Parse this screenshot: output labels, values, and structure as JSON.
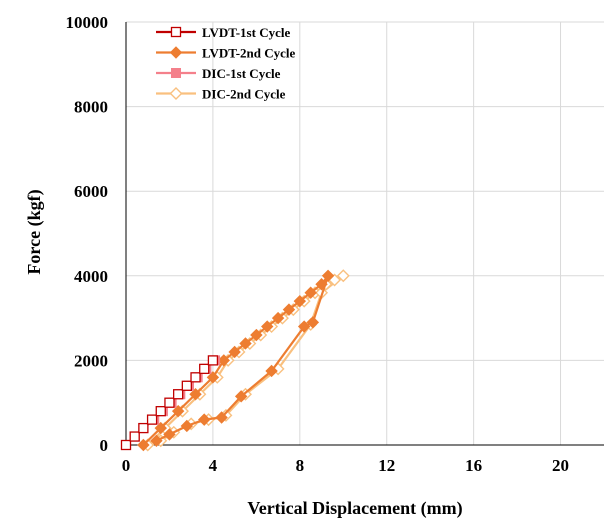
{
  "chart_data": {
    "type": "scatter",
    "title": "",
    "xlabel": "Vertical Displacement (mm)",
    "ylabel": "Force (kgf)",
    "xlim": [
      0,
      22
    ],
    "ylim": [
      0,
      10000
    ],
    "xticks": [
      0,
      4,
      8,
      12,
      16,
      20
    ],
    "yticks": [
      0,
      2000,
      4000,
      6000,
      8000,
      10000
    ],
    "grid": true,
    "legend_position": "top-left",
    "series": [
      {
        "name": "LVDT-1st Cycle",
        "color": "#c00000",
        "marker": "hollow-square",
        "x": [
          0,
          0.4,
          0.8,
          1.2,
          1.6,
          2.0,
          2.4,
          2.8,
          3.2,
          3.6,
          4.0
        ],
        "y": [
          0,
          200,
          400,
          600,
          800,
          1000,
          1200,
          1400,
          1600,
          1800,
          2000
        ]
      },
      {
        "name": "LVDT-2nd Cycle",
        "color": "#ed7d31",
        "marker": "diamond",
        "x": [
          0.8,
          1.6,
          2.4,
          3.2,
          4.0,
          4.5,
          5.0,
          5.5,
          6.0,
          6.5,
          7.0,
          7.5,
          8.0,
          8.5,
          9.0,
          9.3,
          8.6,
          8.2,
          6.7,
          5.3,
          4.4,
          3.6,
          2.8,
          2.0,
          1.4
        ],
        "y": [
          0,
          400,
          800,
          1200,
          1600,
          2000,
          2200,
          2400,
          2600,
          2800,
          3000,
          3200,
          3400,
          3600,
          3800,
          4000,
          2900,
          2800,
          1750,
          1150,
          650,
          600,
          450,
          250,
          100
        ]
      },
      {
        "name": "DIC-1st Cycle",
        "color": "#f4808b",
        "marker": "filled-square",
        "x": [
          0,
          0.4,
          0.8,
          1.3,
          1.7,
          2.1,
          2.5,
          2.9,
          3.3,
          3.7,
          4.1
        ],
        "y": [
          0,
          200,
          400,
          600,
          800,
          1000,
          1200,
          1400,
          1600,
          1800,
          2000
        ]
      },
      {
        "name": "DIC-2nd Cycle",
        "color": "#f9c07f",
        "marker": "hollow-diamond",
        "x": [
          1.0,
          1.8,
          2.6,
          3.4,
          4.2,
          4.7,
          5.2,
          5.7,
          6.2,
          6.7,
          7.2,
          7.7,
          8.2,
          8.7,
          9.2,
          9.6,
          10.0,
          9.0,
          8.5,
          7.0,
          5.5,
          4.6,
          3.8,
          3.0,
          2.2,
          1.6
        ],
        "y": [
          0,
          400,
          800,
          1200,
          1600,
          2000,
          2200,
          2400,
          2600,
          2800,
          3000,
          3200,
          3400,
          3600,
          3800,
          3900,
          4000,
          3600,
          2850,
          1800,
          1200,
          700,
          600,
          500,
          300,
          100
        ]
      }
    ]
  }
}
